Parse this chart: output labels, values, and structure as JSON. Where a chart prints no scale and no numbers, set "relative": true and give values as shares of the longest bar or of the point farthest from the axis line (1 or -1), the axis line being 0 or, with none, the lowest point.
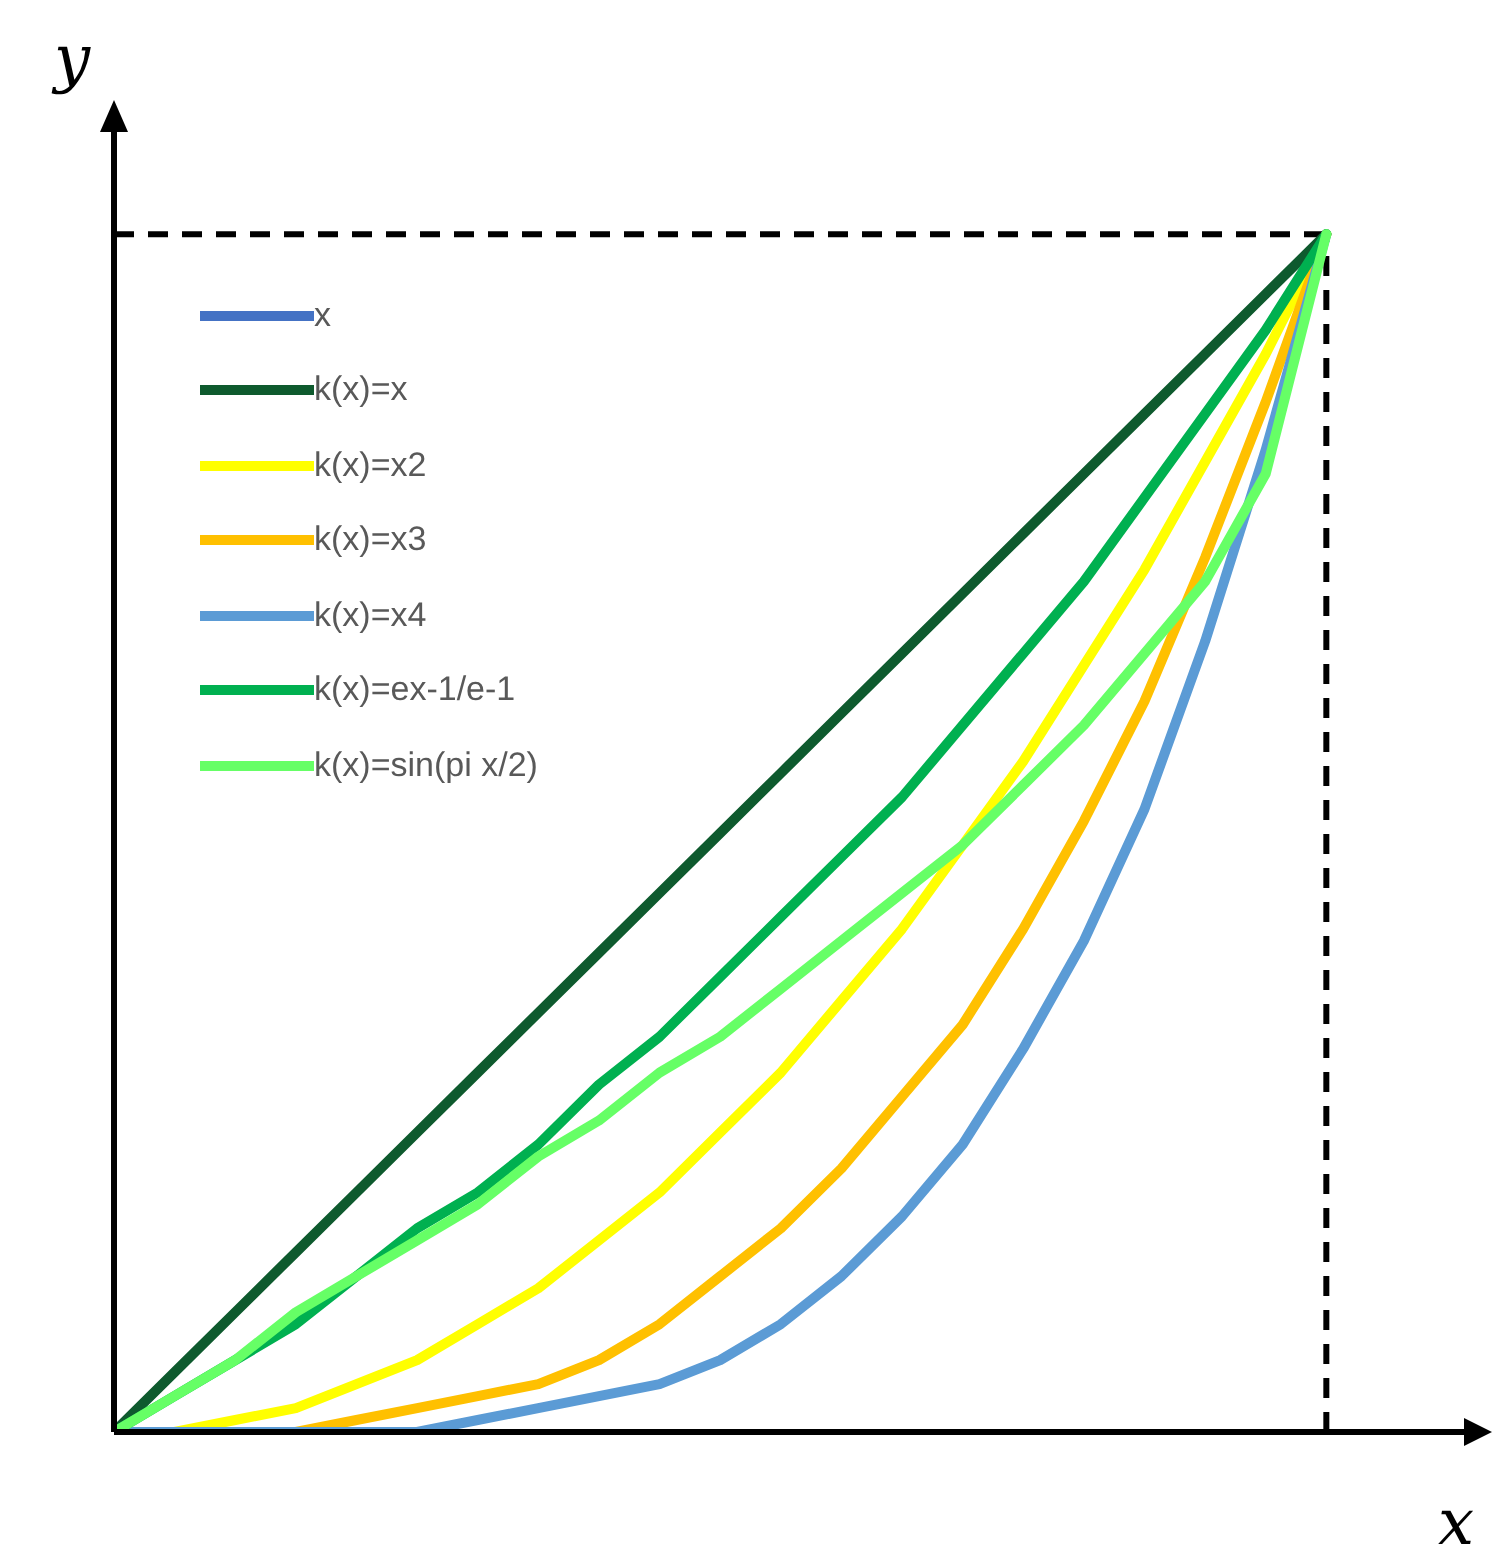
{
  "chart_data": {
    "type": "line",
    "relative": true,
    "xlabel": "x",
    "ylabel": "y",
    "legend": "top left",
    "grid": false,
    "marker": "none",
    "line_style": "solid",
    "categories": [
      null,
      null,
      null,
      null,
      null,
      null,
      null,
      null,
      null,
      null,
      null,
      null,
      null,
      null,
      null,
      null,
      null,
      null,
      null,
      null,
      null
    ],
    "series": [
      {
        "name": "x",
        "color": "#4472c4",
        "values": [
          null,
          null,
          null,
          null,
          null,
          null,
          null,
          null,
          null,
          null,
          null,
          null,
          null,
          null,
          null,
          null,
          null,
          null,
          null,
          null,
          null
        ]
      },
      {
        "name": "k(x)=x",
        "color": "#0e5a2e",
        "values": [
          0,
          0.05,
          0.1,
          0.15,
          0.2,
          0.25,
          0.3,
          0.35,
          0.4,
          0.45,
          0.5,
          0.55,
          0.6,
          0.65,
          0.7,
          0.75,
          0.8,
          0.85,
          0.9,
          0.95,
          1
        ]
      },
      {
        "name": "k(x)=x2",
        "color": "#ffff00",
        "values": [
          0,
          0,
          0.01,
          0.02,
          0.04,
          0.06,
          0.09,
          0.12,
          0.16,
          0.2,
          0.25,
          0.3,
          0.36,
          0.42,
          0.49,
          0.56,
          0.64,
          0.72,
          0.81,
          0.9,
          1
        ]
      },
      {
        "name": "k(x)=x3",
        "color": "#ffc000",
        "values": [
          null,
          null,
          0,
          0,
          0.01,
          0.02,
          0.03,
          0.04,
          0.06,
          0.09,
          0.13,
          0.17,
          0.22,
          0.28,
          0.34,
          0.42,
          0.51,
          0.61,
          0.73,
          0.86,
          1
        ]
      },
      {
        "name": "k(x)=x4",
        "color": "#5b9bd5",
        "values": [
          0,
          0,
          0,
          0,
          0,
          0,
          0.01,
          0.02,
          0.03,
          0.04,
          0.06,
          0.09,
          0.13,
          0.18,
          0.24,
          0.32,
          0.41,
          0.52,
          0.66,
          0.82,
          1
        ]
      },
      {
        "name": "k(x)=ex-1/e-1",
        "color": "#00b050",
        "values": [
          0,
          0.03,
          0.06,
          0.09,
          0.13,
          0.17,
          0.2,
          0.24,
          0.29,
          0.33,
          0.38,
          0.43,
          0.48,
          0.53,
          0.59,
          0.65,
          0.71,
          0.78,
          0.85,
          0.92,
          1
        ]
      },
      {
        "name": "k(x)=sin(pi x/2)",
        "color": "#66ff66",
        "values": [
          0,
          0.03,
          0.06,
          0.1,
          0.13,
          0.16,
          0.19,
          0.23,
          0.26,
          0.3,
          0.33,
          0.37,
          0.41,
          0.45,
          0.49,
          0.54,
          0.59,
          0.65,
          0.71,
          0.8,
          1
        ]
      }
    ],
    "ref_lines": [
      {
        "axis": "y",
        "value": 1,
        "color": "#000000",
        "line_style": "dashed"
      },
      {
        "axis": "x",
        "color": "#000000",
        "line_style": "dashed"
      }
    ]
  }
}
